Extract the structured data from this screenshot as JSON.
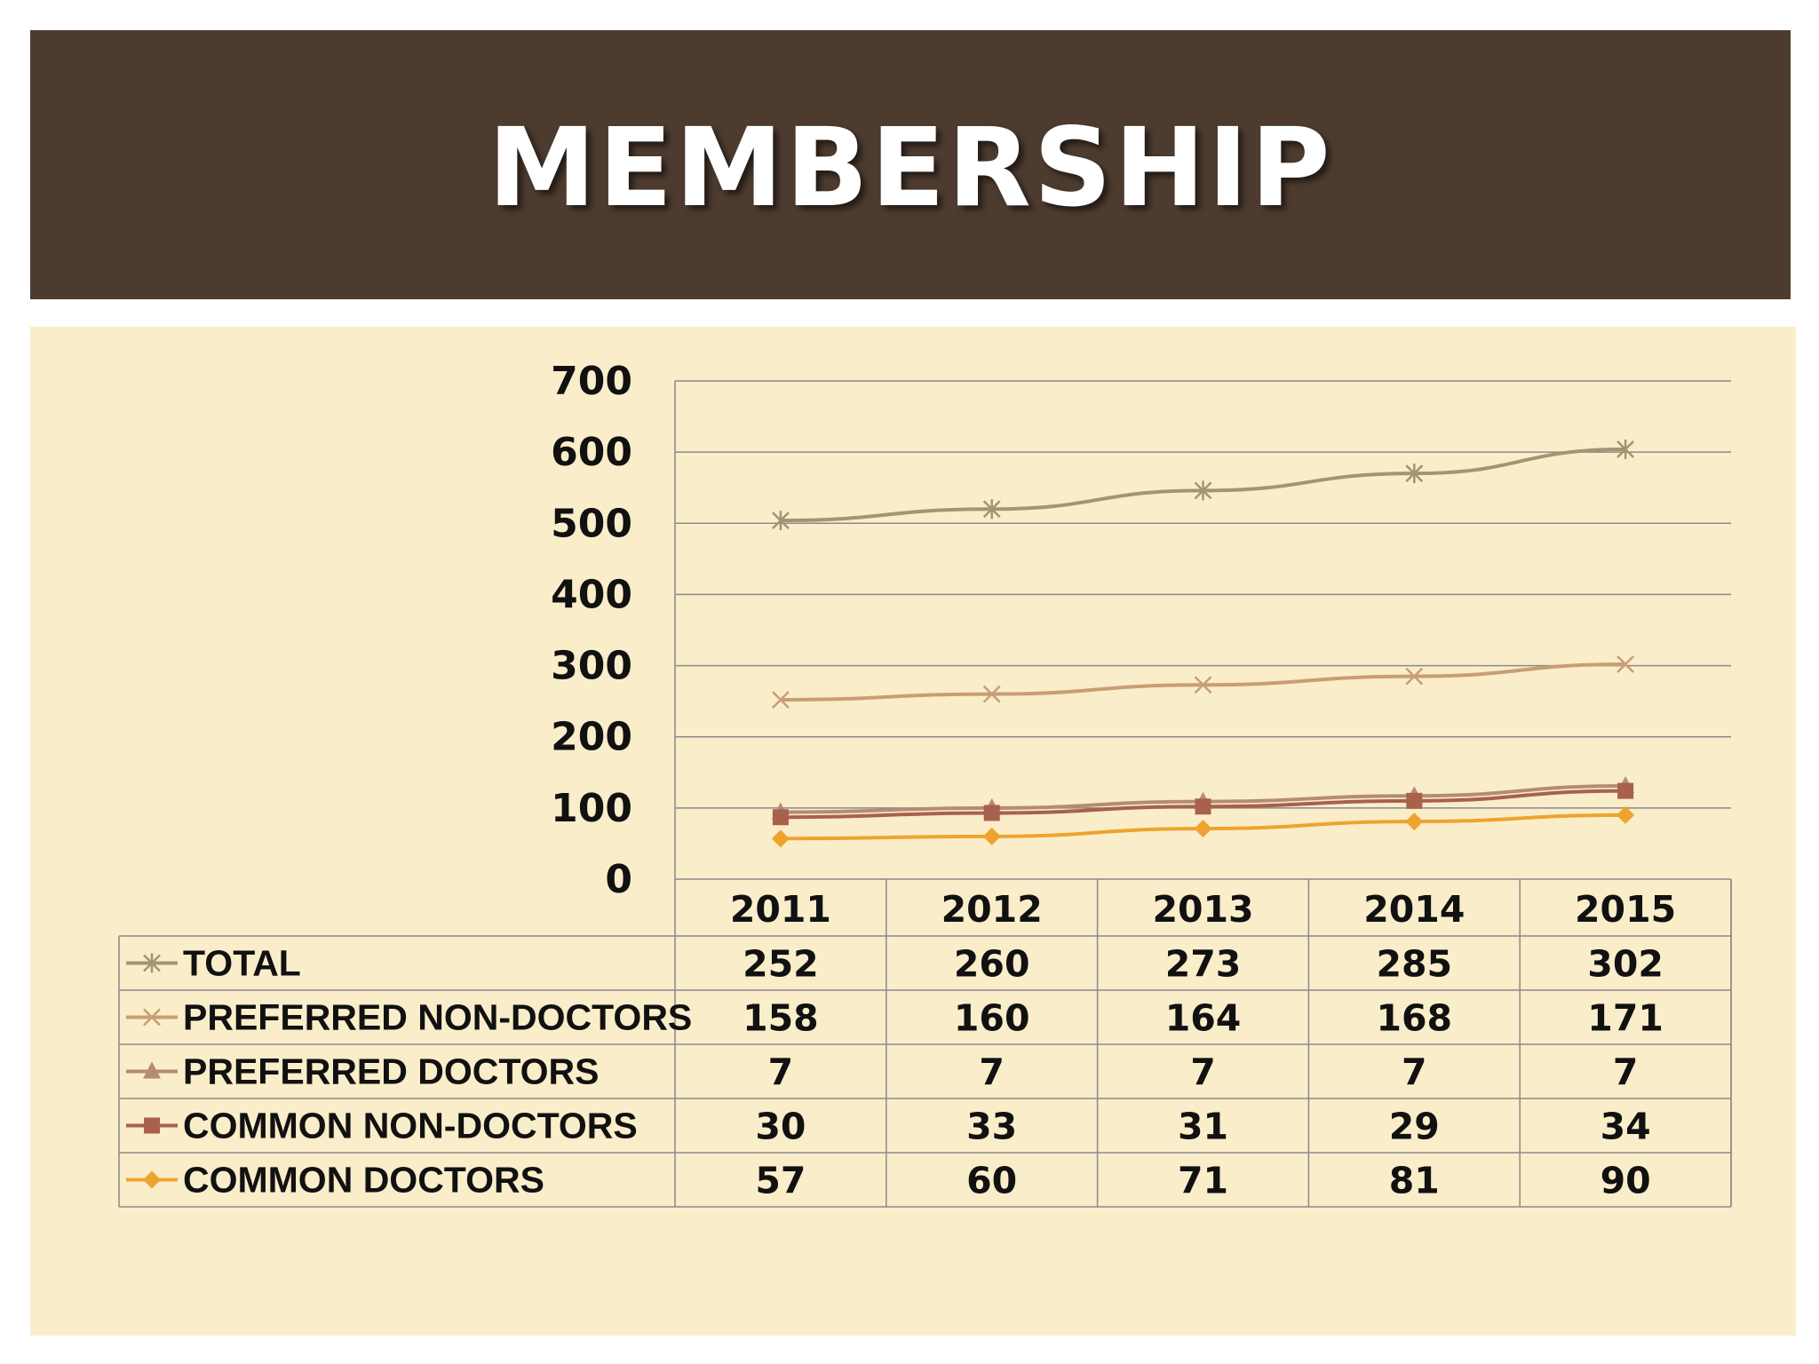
{
  "title": "MEMBERSHIP",
  "colors": {
    "title_bar": "#4d3b2f",
    "panel": "#faedca",
    "grid": "#8a8a8a"
  },
  "chart_data": {
    "type": "line",
    "stacked": true,
    "title": "",
    "xlabel": "",
    "ylabel": "",
    "ylim": [
      0,
      700
    ],
    "yticks": [
      0,
      100,
      200,
      300,
      400,
      500,
      600,
      700
    ],
    "grid": true,
    "legend": "data-table-below",
    "categories": [
      "2011",
      "2012",
      "2013",
      "2014",
      "2015"
    ],
    "series": [
      {
        "name": "TOTAL",
        "values": [
          252,
          260,
          273,
          285,
          302
        ],
        "color": "#a39572",
        "marker": "star"
      },
      {
        "name": "PREFERRED NON-DOCTORS",
        "values": [
          158,
          160,
          164,
          168,
          171
        ],
        "color": "#c89e74",
        "marker": "x"
      },
      {
        "name": "PREFERRED DOCTORS",
        "values": [
          7,
          7,
          7,
          7,
          7
        ],
        "color": "#b58b74",
        "marker": "triangle"
      },
      {
        "name": "COMMON NON-DOCTORS",
        "values": [
          30,
          33,
          31,
          29,
          34
        ],
        "color": "#a8614a",
        "marker": "square"
      },
      {
        "name": "COMMON DOCTORS",
        "values": [
          57,
          60,
          71,
          81,
          90
        ],
        "color": "#eea32e",
        "marker": "diamond"
      }
    ]
  }
}
